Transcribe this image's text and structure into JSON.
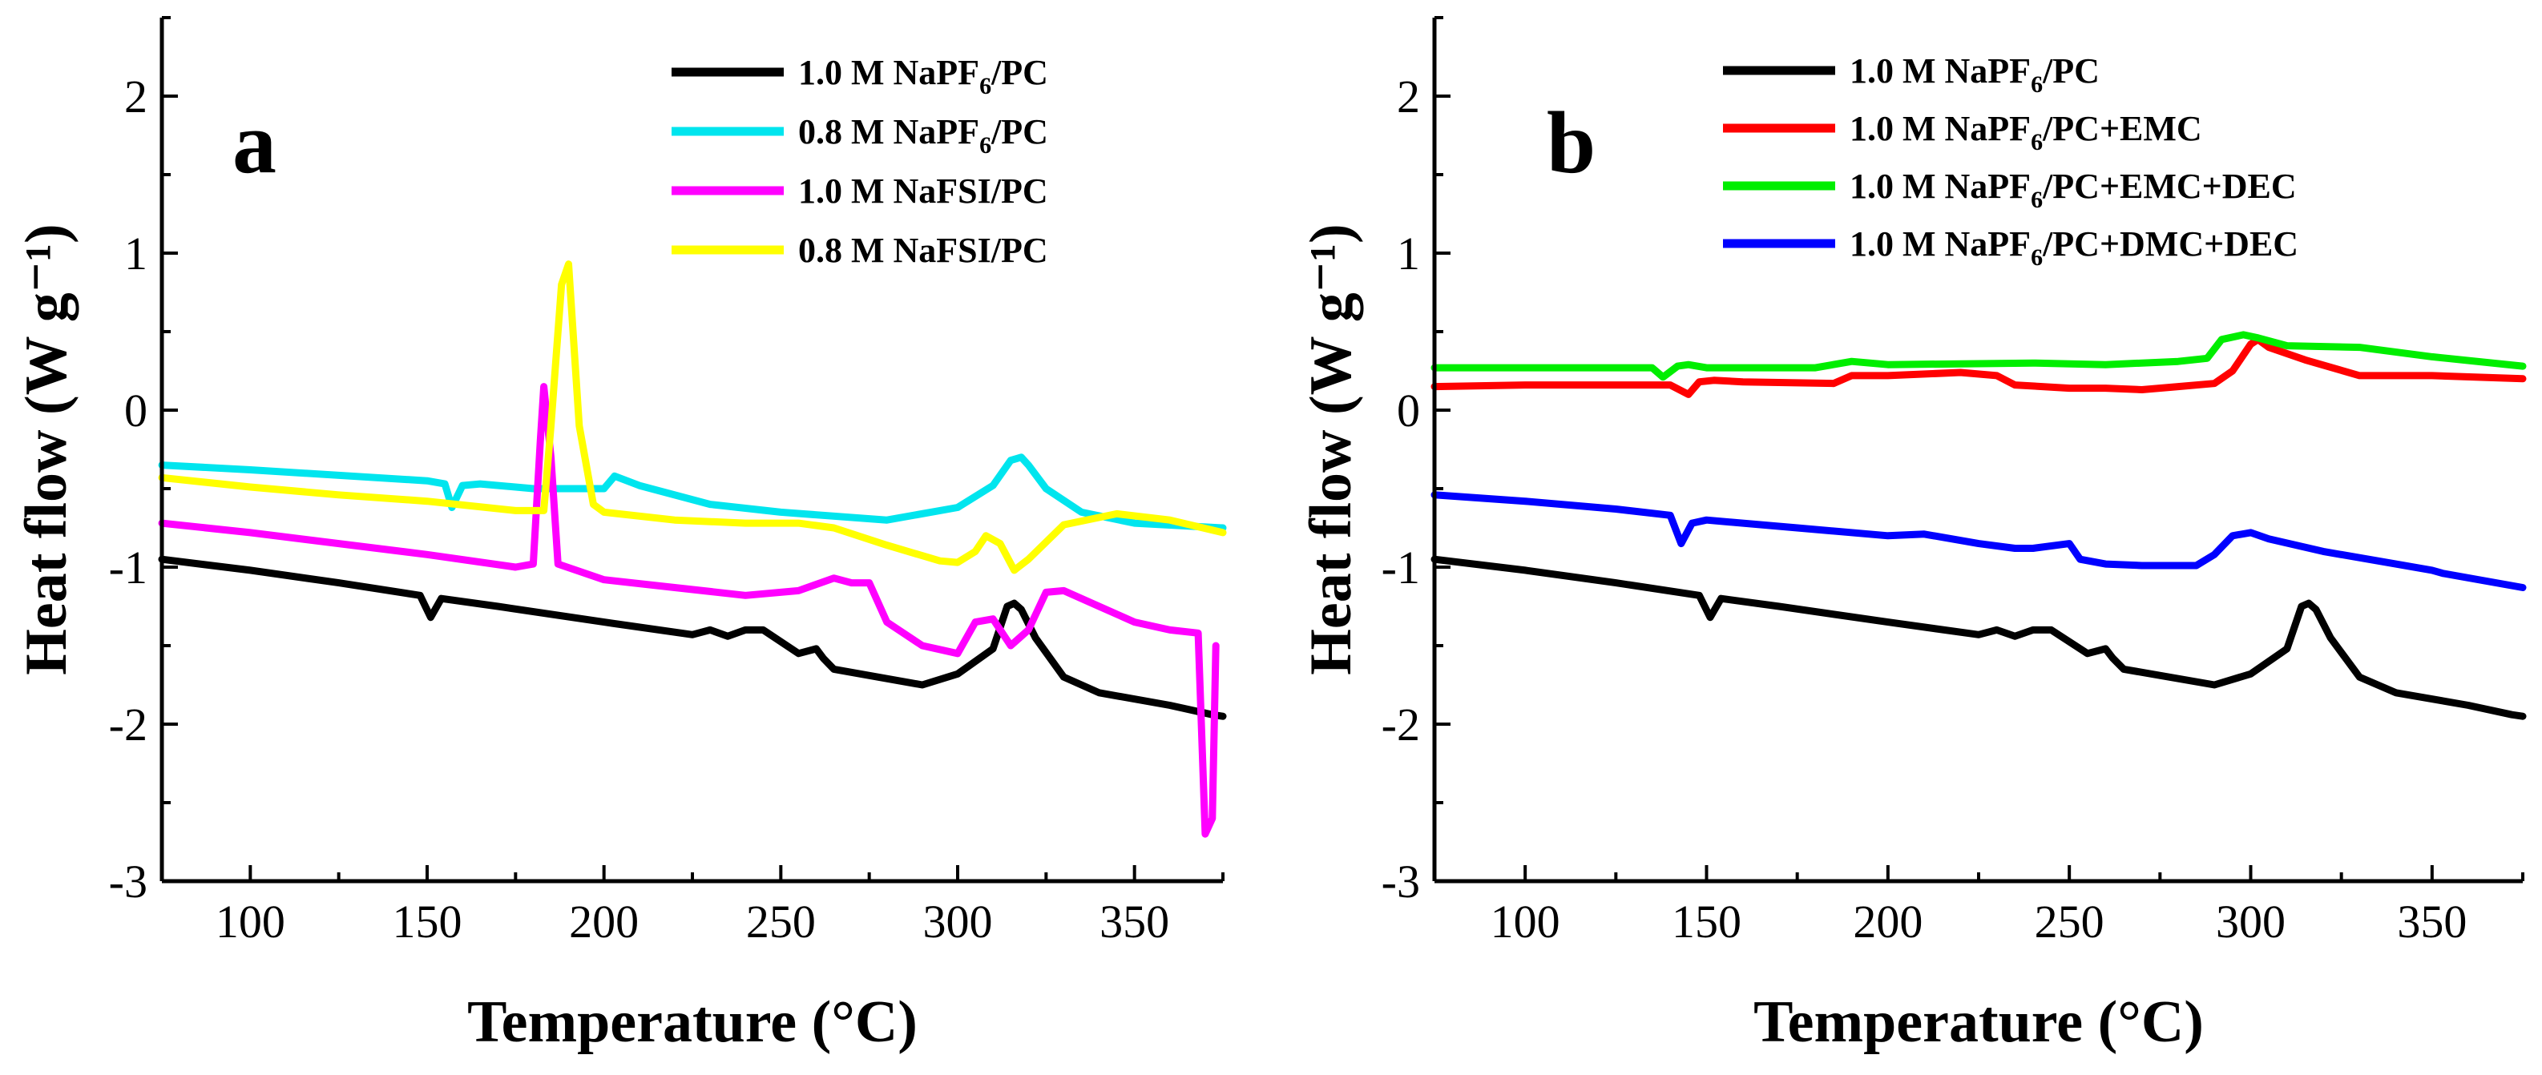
{
  "chart_data": [
    {
      "type": "line",
      "panel_label": "a",
      "xlabel": "Temperature (°C)",
      "ylabel": "Heat flow (W g⁻¹)",
      "xlim": [
        75,
        375
      ],
      "ylim": [
        -3,
        2.5
      ],
      "xticks": [
        100,
        150,
        200,
        250,
        300,
        350
      ],
      "yticks": [
        -3,
        -2,
        -1,
        0,
        1,
        2
      ],
      "legend_position": "top-right",
      "series": [
        {
          "name": "1.0 M NaPF6/PC",
          "legend_main": "1.0 M NaPF",
          "legend_sub": "6",
          "legend_suffix": "/PC",
          "color": "#000000",
          "x": [
            75,
            100,
            125,
            148,
            151,
            154,
            170,
            200,
            225,
            230,
            235,
            240,
            245,
            255,
            260,
            262,
            265,
            290,
            300,
            310,
            314,
            316,
            318,
            322,
            330,
            340,
            360,
            372,
            375
          ],
          "y": [
            -0.95,
            -1.02,
            -1.1,
            -1.18,
            -1.32,
            -1.2,
            -1.25,
            -1.35,
            -1.43,
            -1.4,
            -1.44,
            -1.4,
            -1.4,
            -1.55,
            -1.52,
            -1.58,
            -1.65,
            -1.75,
            -1.68,
            -1.52,
            -1.25,
            -1.23,
            -1.27,
            -1.45,
            -1.7,
            -1.8,
            -1.88,
            -1.94,
            -1.95
          ]
        },
        {
          "name": "0.8 M NaPF6/PC",
          "legend_main": "0.8 M NaPF",
          "legend_sub": "6",
          "legend_suffix": "/PC",
          "color": "#00e5ee",
          "x": [
            75,
            100,
            150,
            155,
            157,
            160,
            165,
            180,
            200,
            203,
            210,
            230,
            250,
            280,
            300,
            310,
            315,
            318,
            320,
            325,
            335,
            350,
            375
          ],
          "y": [
            -0.35,
            -0.38,
            -0.45,
            -0.47,
            -0.62,
            -0.48,
            -0.47,
            -0.5,
            -0.5,
            -0.42,
            -0.48,
            -0.6,
            -0.65,
            -0.7,
            -0.62,
            -0.48,
            -0.32,
            -0.3,
            -0.35,
            -0.5,
            -0.65,
            -0.72,
            -0.75
          ]
        },
        {
          "name": "1.0 M NaFSI/PC",
          "legend_main": "1.0 M NaFSI/PC",
          "legend_sub": "",
          "legend_suffix": "",
          "color": "#ff00ff",
          "x": [
            75,
            100,
            150,
            175,
            180,
            182,
            183,
            185,
            187,
            200,
            220,
            240,
            255,
            265,
            270,
            275,
            280,
            290,
            300,
            305,
            310,
            315,
            320,
            325,
            330,
            340,
            350,
            360,
            368,
            370,
            372,
            373
          ],
          "y": [
            -0.72,
            -0.78,
            -0.92,
            -1.0,
            -0.98,
            -0.2,
            0.15,
            -0.3,
            -0.98,
            -1.08,
            -1.13,
            -1.18,
            -1.15,
            -1.07,
            -1.1,
            -1.1,
            -1.35,
            -1.5,
            -1.55,
            -1.35,
            -1.33,
            -1.5,
            -1.4,
            -1.16,
            -1.15,
            -1.25,
            -1.35,
            -1.4,
            -1.42,
            -2.7,
            -2.6,
            -1.5
          ]
        },
        {
          "name": "0.8 M NaFSI/PC",
          "legend_main": "0.8 M NaFSI/PC",
          "legend_sub": "",
          "legend_suffix": "",
          "color": "#ffff00",
          "x": [
            75,
            100,
            125,
            150,
            175,
            183,
            185,
            188,
            190,
            193,
            197,
            200,
            220,
            240,
            255,
            265,
            280,
            295,
            300,
            305,
            308,
            312,
            316,
            320,
            330,
            345,
            360,
            375
          ],
          "y": [
            -0.43,
            -0.49,
            -0.54,
            -0.58,
            -0.64,
            -0.64,
            -0.1,
            0.8,
            0.93,
            -0.1,
            -0.6,
            -0.65,
            -0.7,
            -0.72,
            -0.72,
            -0.75,
            -0.86,
            -0.96,
            -0.97,
            -0.9,
            -0.8,
            -0.85,
            -1.02,
            -0.95,
            -0.73,
            -0.66,
            -0.7,
            -0.78
          ]
        }
      ]
    },
    {
      "type": "line",
      "panel_label": "b",
      "xlabel": "Temperature (°C)",
      "ylabel": "Heat flow (W g⁻¹)",
      "xlim": [
        75,
        375
      ],
      "ylim": [
        -3,
        2.5
      ],
      "xticks": [
        100,
        150,
        200,
        250,
        300,
        350
      ],
      "yticks": [
        -3,
        -2,
        -1,
        0,
        1,
        2
      ],
      "legend_position": "top-left",
      "series": [
        {
          "name": "1.0 M NaPF6/PC",
          "legend_main": "1.0 M NaPF",
          "legend_sub": "6",
          "legend_suffix": "/PC",
          "color": "#000000",
          "x": [
            75,
            100,
            125,
            148,
            151,
            154,
            170,
            200,
            225,
            230,
            235,
            240,
            245,
            255,
            260,
            262,
            265,
            290,
            300,
            310,
            314,
            316,
            318,
            322,
            330,
            340,
            360,
            372,
            375
          ],
          "y": [
            -0.95,
            -1.02,
            -1.1,
            -1.18,
            -1.32,
            -1.2,
            -1.25,
            -1.35,
            -1.43,
            -1.4,
            -1.44,
            -1.4,
            -1.4,
            -1.55,
            -1.52,
            -1.58,
            -1.65,
            -1.75,
            -1.68,
            -1.52,
            -1.25,
            -1.23,
            -1.27,
            -1.45,
            -1.7,
            -1.8,
            -1.88,
            -1.94,
            -1.95
          ]
        },
        {
          "name": "1.0 M NaPF6/PC+EMC",
          "legend_main": "1.0 M NaPF",
          "legend_sub": "6",
          "legend_suffix": "/PC+EMC",
          "color": "#ff0000",
          "x": [
            75,
            100,
            140,
            145,
            148,
            152,
            160,
            185,
            190,
            200,
            220,
            230,
            235,
            250,
            260,
            270,
            280,
            290,
            295,
            300,
            302,
            305,
            315,
            330,
            350,
            375
          ],
          "y": [
            0.15,
            0.16,
            0.16,
            0.1,
            0.18,
            0.19,
            0.18,
            0.17,
            0.22,
            0.22,
            0.24,
            0.22,
            0.16,
            0.14,
            0.14,
            0.13,
            0.15,
            0.17,
            0.25,
            0.42,
            0.45,
            0.4,
            0.32,
            0.22,
            0.22,
            0.2
          ]
        },
        {
          "name": "1.0 M NaPF6/PC+EMC+DEC",
          "legend_main": "1.0 M NaPF",
          "legend_sub": "6",
          "legend_suffix": "/PC+EMC+DEC",
          "color": "#00ee00",
          "x": [
            75,
            100,
            135,
            138,
            142,
            145,
            150,
            180,
            190,
            200,
            240,
            260,
            280,
            288,
            292,
            298,
            302,
            310,
            330,
            350,
            375
          ],
          "y": [
            0.27,
            0.27,
            0.27,
            0.21,
            0.28,
            0.29,
            0.27,
            0.27,
            0.31,
            0.29,
            0.3,
            0.29,
            0.31,
            0.33,
            0.45,
            0.48,
            0.46,
            0.41,
            0.4,
            0.34,
            0.28
          ]
        },
        {
          "name": "1.0 M NaPF6/PC+DMC+DEC",
          "legend_main": "1.0 M NaPF",
          "legend_sub": "6",
          "legend_suffix": "/PC+DMC+DEC",
          "color": "#0000ff",
          "x": [
            75,
            100,
            125,
            140,
            143,
            146,
            150,
            175,
            200,
            210,
            225,
            235,
            240,
            250,
            253,
            260,
            270,
            285,
            290,
            295,
            300,
            305,
            320,
            340,
            350,
            353,
            375
          ],
          "y": [
            -0.54,
            -0.58,
            -0.63,
            -0.67,
            -0.85,
            -0.72,
            -0.7,
            -0.75,
            -0.8,
            -0.79,
            -0.85,
            -0.88,
            -0.88,
            -0.85,
            -0.95,
            -0.98,
            -0.99,
            -0.99,
            -0.92,
            -0.8,
            -0.78,
            -0.82,
            -0.9,
            -0.98,
            -1.02,
            -1.04,
            -1.13
          ]
        }
      ]
    }
  ]
}
